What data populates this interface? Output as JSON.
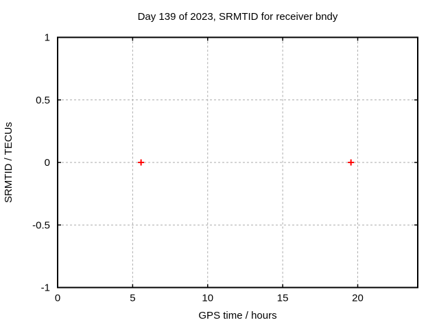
{
  "chart_data": {
    "type": "scatter",
    "title": "Day 139 of 2023, SRMTID for receiver bndy",
    "xlabel": "GPS time / hours",
    "ylabel": "SRMTID / TECUs",
    "xlim": [
      0,
      24
    ],
    "ylim": [
      -1,
      1
    ],
    "xticks": [
      0,
      5,
      10,
      15,
      20
    ],
    "xtick_labels": [
      "0",
      "5",
      "10",
      "15",
      "20"
    ],
    "yticks": [
      -1,
      -0.5,
      0,
      0.5,
      1
    ],
    "ytick_labels": [
      "-1",
      "-0.5",
      "0",
      "0.5",
      "1"
    ],
    "grid": true,
    "grid_style": "dotted",
    "legend_position": "none",
    "series": [
      {
        "name": "SRMTID",
        "marker": "plus",
        "color": "#ff0000",
        "points": [
          {
            "x": 5.56,
            "y": 0
          },
          {
            "x": 19.55,
            "y": 0
          }
        ]
      }
    ],
    "colors": {
      "background": "#ffffff",
      "border": "#000000",
      "grid": "#a9a9a9",
      "text": "#000000"
    }
  }
}
